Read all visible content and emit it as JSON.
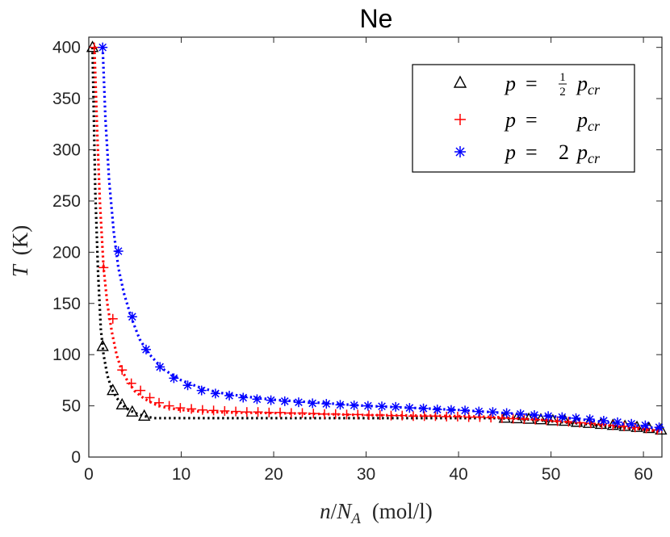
{
  "chart_data": {
    "type": "line",
    "title": "Ne",
    "xlabel": "n/N_A  (mol/l)",
    "ylabel": "T  (K)",
    "xlim": [
      0,
      62
    ],
    "ylim": [
      0,
      410
    ],
    "xticks": [
      0,
      10,
      20,
      30,
      40,
      50,
      60
    ],
    "yticks": [
      0,
      50,
      100,
      150,
      200,
      250,
      300,
      350,
      400
    ],
    "grid": false,
    "legend_position": "top-right",
    "series": [
      {
        "name": "p = ½ p_cr",
        "color": "#000000",
        "marker": "triangle",
        "line_x": [
          0.4,
          0.7,
          1.0,
          1.3,
          1.6,
          2.0,
          2.5,
          3.0,
          3.5,
          4.0,
          5.0,
          6.0,
          7.0,
          10,
          20,
          30,
          40,
          44,
          46,
          48,
          50,
          52,
          54,
          56,
          58,
          60,
          62
        ],
        "line_y": [
          400,
          260,
          180,
          125,
          100,
          80,
          66,
          58,
          52,
          48,
          43,
          40,
          38,
          38,
          38,
          38,
          38,
          38,
          37.5,
          36.5,
          35,
          33.5,
          32,
          30,
          28.5,
          27,
          25
        ],
        "marker_x": [
          0.4,
          1.5,
          2.6,
          3.6,
          4.7,
          6.0,
          45.0,
          46.3,
          47.6,
          48.9,
          50.2,
          51.5,
          52.8,
          54.1,
          55.4,
          56.7,
          58.0,
          59.3,
          60.6,
          61.9
        ],
        "marker_y": [
          400,
          108,
          65,
          51,
          44,
          40,
          38,
          37.5,
          37,
          36.5,
          35.5,
          35,
          34,
          33,
          32,
          31,
          30,
          29,
          28,
          26.5
        ]
      },
      {
        "name": "p = p_cr",
        "color": "#ff0000",
        "marker": "plus",
        "line_x": [
          0.6,
          0.9,
          1.2,
          1.6,
          2.0,
          2.5,
          3.0,
          3.5,
          4.2,
          5.0,
          6.0,
          7.0,
          8.0,
          10,
          12,
          15,
          20,
          25,
          30,
          35,
          40,
          44,
          48,
          52,
          56,
          60,
          62
        ],
        "line_y": [
          400,
          320,
          250,
          185,
          150,
          122,
          100,
          86,
          74,
          64,
          57,
          52,
          49,
          46,
          44.5,
          43.5,
          43,
          42,
          41,
          40.5,
          40,
          39,
          37,
          34,
          31,
          27,
          24.5
        ],
        "marker_x": [
          0.6,
          1.6,
          2.6,
          3.6,
          4.6,
          5.6,
          6.6,
          7.6,
          8.7,
          9.9,
          11.1,
          12.3,
          13.5,
          14.7,
          15.9,
          17.1,
          18.3,
          19.5,
          20.7,
          21.9,
          23.1,
          24.3,
          25.5,
          26.7,
          27.9,
          29.1,
          30.3,
          31.5,
          32.7,
          33.9,
          35.1,
          36.3,
          37.5,
          38.7,
          39.9,
          41.1,
          42.3,
          43.5,
          44.7,
          45.9,
          47.1,
          48.3,
          49.5,
          50.7,
          51.9,
          53.1,
          54.3,
          55.5,
          56.7,
          57.9,
          59.1,
          60.3,
          61.5
        ],
        "marker_y": [
          400,
          185,
          135,
          85,
          72,
          65,
          58,
          53,
          50,
          48,
          47,
          46,
          45.5,
          45,
          44.5,
          44,
          44,
          43.5,
          43.5,
          43,
          43,
          42.5,
          42,
          42,
          41.5,
          41.5,
          41,
          41,
          40.5,
          40.5,
          40,
          40,
          40,
          39.5,
          39.5,
          39,
          39,
          38.5,
          38,
          37.5,
          37,
          36.5,
          36,
          35,
          34.5,
          33.5,
          33,
          32,
          31,
          30,
          29,
          28,
          26.5
        ]
      },
      {
        "name": "p = 2 p_cr",
        "color": "#0000ff",
        "marker": "asterisk",
        "line_x": [
          1.5,
          1.8,
          2.2,
          2.7,
          3.2,
          3.8,
          4.6,
          5.5,
          6.5,
          8,
          10,
          12,
          14,
          17,
          20,
          25,
          30,
          35,
          40,
          45,
          50,
          55,
          60,
          62
        ],
        "line_y": [
          400,
          330,
          270,
          220,
          185,
          160,
          136,
          115,
          101,
          86,
          75,
          68,
          63,
          59,
          56,
          53,
          50,
          48,
          46,
          43,
          40,
          35,
          30,
          27
        ],
        "marker_x": [
          1.5,
          3.2,
          4.7,
          6.2,
          7.7,
          9.2,
          10.7,
          12.2,
          13.7,
          15.2,
          16.7,
          18.2,
          19.7,
          21.2,
          22.7,
          24.2,
          25.7,
          27.2,
          28.7,
          30.2,
          31.7,
          33.2,
          34.7,
          36.2,
          37.7,
          39.2,
          40.7,
          42.2,
          43.7,
          45.2,
          46.7,
          48.2,
          49.7,
          51.2,
          52.7,
          54.2,
          55.7,
          57.2,
          58.7,
          60.2,
          61.7
        ],
        "marker_y": [
          400,
          201,
          137,
          105,
          88,
          77,
          70,
          65,
          62,
          60,
          58,
          56.5,
          55.5,
          54.5,
          53.5,
          52.5,
          52,
          51,
          50.5,
          50,
          49.5,
          49,
          48,
          47.5,
          46.5,
          46,
          45.5,
          44.5,
          44,
          43,
          42,
          41,
          40,
          39,
          38,
          37,
          35.5,
          34,
          32.5,
          31,
          29
        ]
      }
    ]
  },
  "legend": {
    "entries": [
      {
        "p": "p",
        "eq": "=",
        "num": "1",
        "den": "2",
        "pcr": "p",
        "sub": "cr"
      },
      {
        "p": "p",
        "eq": "=",
        "num": "",
        "den": "",
        "pcr": "p",
        "sub": "cr"
      },
      {
        "p": "p",
        "eq": "=",
        "coef": "2",
        "pcr": "p",
        "sub": "cr"
      }
    ]
  },
  "labels": {
    "title": "Ne",
    "x_n": "n",
    "x_slash": "/",
    "x_N": "N",
    "x_A": "A",
    "x_unit": "(mol/l)",
    "y_T": "T",
    "y_unit": "(K)"
  }
}
